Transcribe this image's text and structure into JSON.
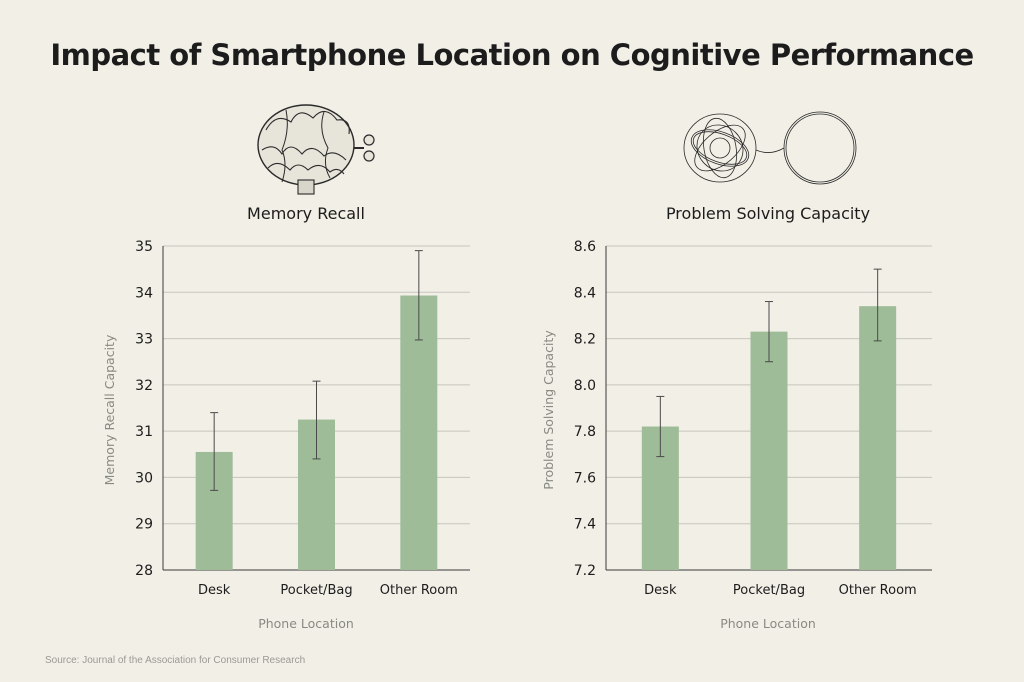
{
  "title": "Impact of Smartphone Location on Cognitive Performance",
  "source": "Source: Journal of the Association for Consumer Research",
  "colors": {
    "bar": "#9fbc98",
    "grid": "#c8c6bd",
    "axis": "#3a3a3a",
    "error": "#4a4a4a"
  },
  "icons": [
    "brain-windup-icon",
    "tangled-line-to-circle-icon"
  ],
  "chart_data": [
    {
      "type": "bar",
      "title": "Memory Recall",
      "xlabel": "Phone Location",
      "ylabel": "Memory Recall Capacity",
      "categories": [
        "Desk",
        "Pocket/Bag",
        "Other Room"
      ],
      "values": [
        30.55,
        31.25,
        33.93
      ],
      "error_low": [
        29.72,
        30.4,
        32.97
      ],
      "error_high": [
        31.4,
        32.08,
        34.9
      ],
      "ylim": [
        28,
        35
      ],
      "yticks": [
        "28",
        "29",
        "30",
        "31",
        "32",
        "33",
        "34",
        "35"
      ],
      "grid": true
    },
    {
      "type": "bar",
      "title": "Problem Solving Capacity",
      "xlabel": "Phone Location",
      "ylabel": "Problem Solving Capacity",
      "categories": [
        "Desk",
        "Pocket/Bag",
        "Other Room"
      ],
      "values": [
        7.82,
        8.23,
        8.34
      ],
      "error_low": [
        7.69,
        8.1,
        8.19
      ],
      "error_high": [
        7.95,
        8.36,
        8.5
      ],
      "ylim": [
        7.2,
        8.6
      ],
      "yticks": [
        "7.2",
        "7.4",
        "7.6",
        "7.8",
        "8.0",
        "8.2",
        "8.4",
        "8.6"
      ],
      "grid": true
    }
  ]
}
